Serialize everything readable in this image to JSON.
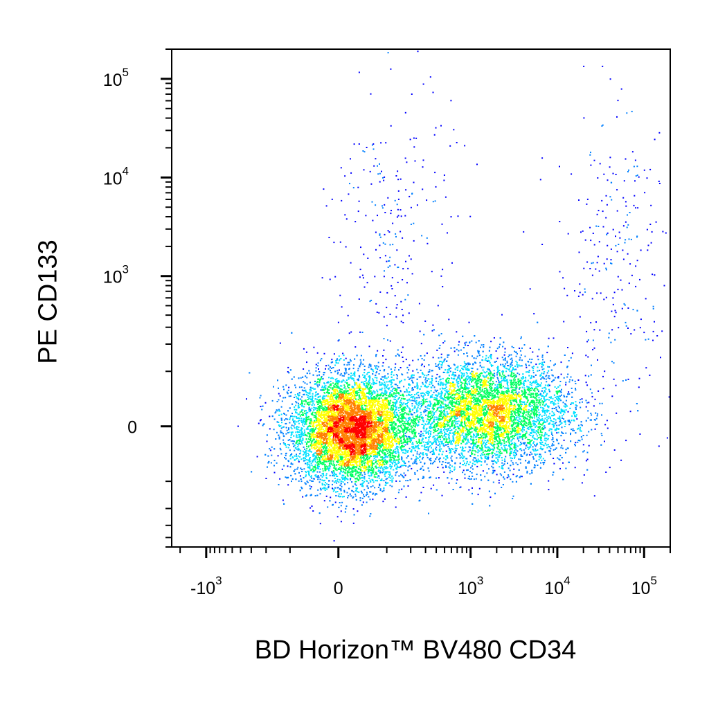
{
  "chart_data": {
    "type": "scatter",
    "subtype": "flow-cytometry-pseudocolor-dot-plot",
    "title": "",
    "xlabel": "BD Horizon™ BV480 CD34",
    "ylabel": "PE CD133",
    "x_scale": "biexponential",
    "y_scale": "biexponential",
    "x_ticks": [
      {
        "base": "-10",
        "exp": "3",
        "value": -1000
      },
      {
        "base": "0",
        "exp": "",
        "value": 0
      },
      {
        "base": "10",
        "exp": "3",
        "value": 1000
      },
      {
        "base": "10",
        "exp": "4",
        "value": 10000
      },
      {
        "base": "10",
        "exp": "5",
        "value": 100000
      }
    ],
    "y_ticks": [
      {
        "base": "0",
        "exp": "",
        "value": 0
      },
      {
        "base": "10",
        "exp": "3",
        "value": 1000
      },
      {
        "base": "10",
        "exp": "4",
        "value": 10000
      },
      {
        "base": "10",
        "exp": "5",
        "value": 100000
      }
    ],
    "xlim": [
      -2500,
      200000
    ],
    "ylim": [
      -500,
      200000
    ],
    "density_colors": [
      "#0000ff",
      "#0080ff",
      "#00e0ff",
      "#00ff60",
      "#ffff00",
      "#ff8000",
      "#ff0000"
    ],
    "populations": [
      {
        "x_center": 20,
        "y_center": -5,
        "x_spread_log": 0.25,
        "y_spread_log": 0.2,
        "density": "high"
      },
      {
        "x_center": 1500,
        "y_center": 20,
        "x_spread_log": 0.35,
        "y_spread_log": 0.2,
        "density": "medium"
      },
      {
        "x_center": 120,
        "y_center": 2500,
        "x_spread_log": 0.25,
        "y_spread_log": 0.6,
        "density": "sparse"
      },
      {
        "x_center": 45000,
        "y_center": 1500,
        "x_spread_log": 0.25,
        "y_spread_log": 0.55,
        "density": "sparse"
      }
    ]
  }
}
